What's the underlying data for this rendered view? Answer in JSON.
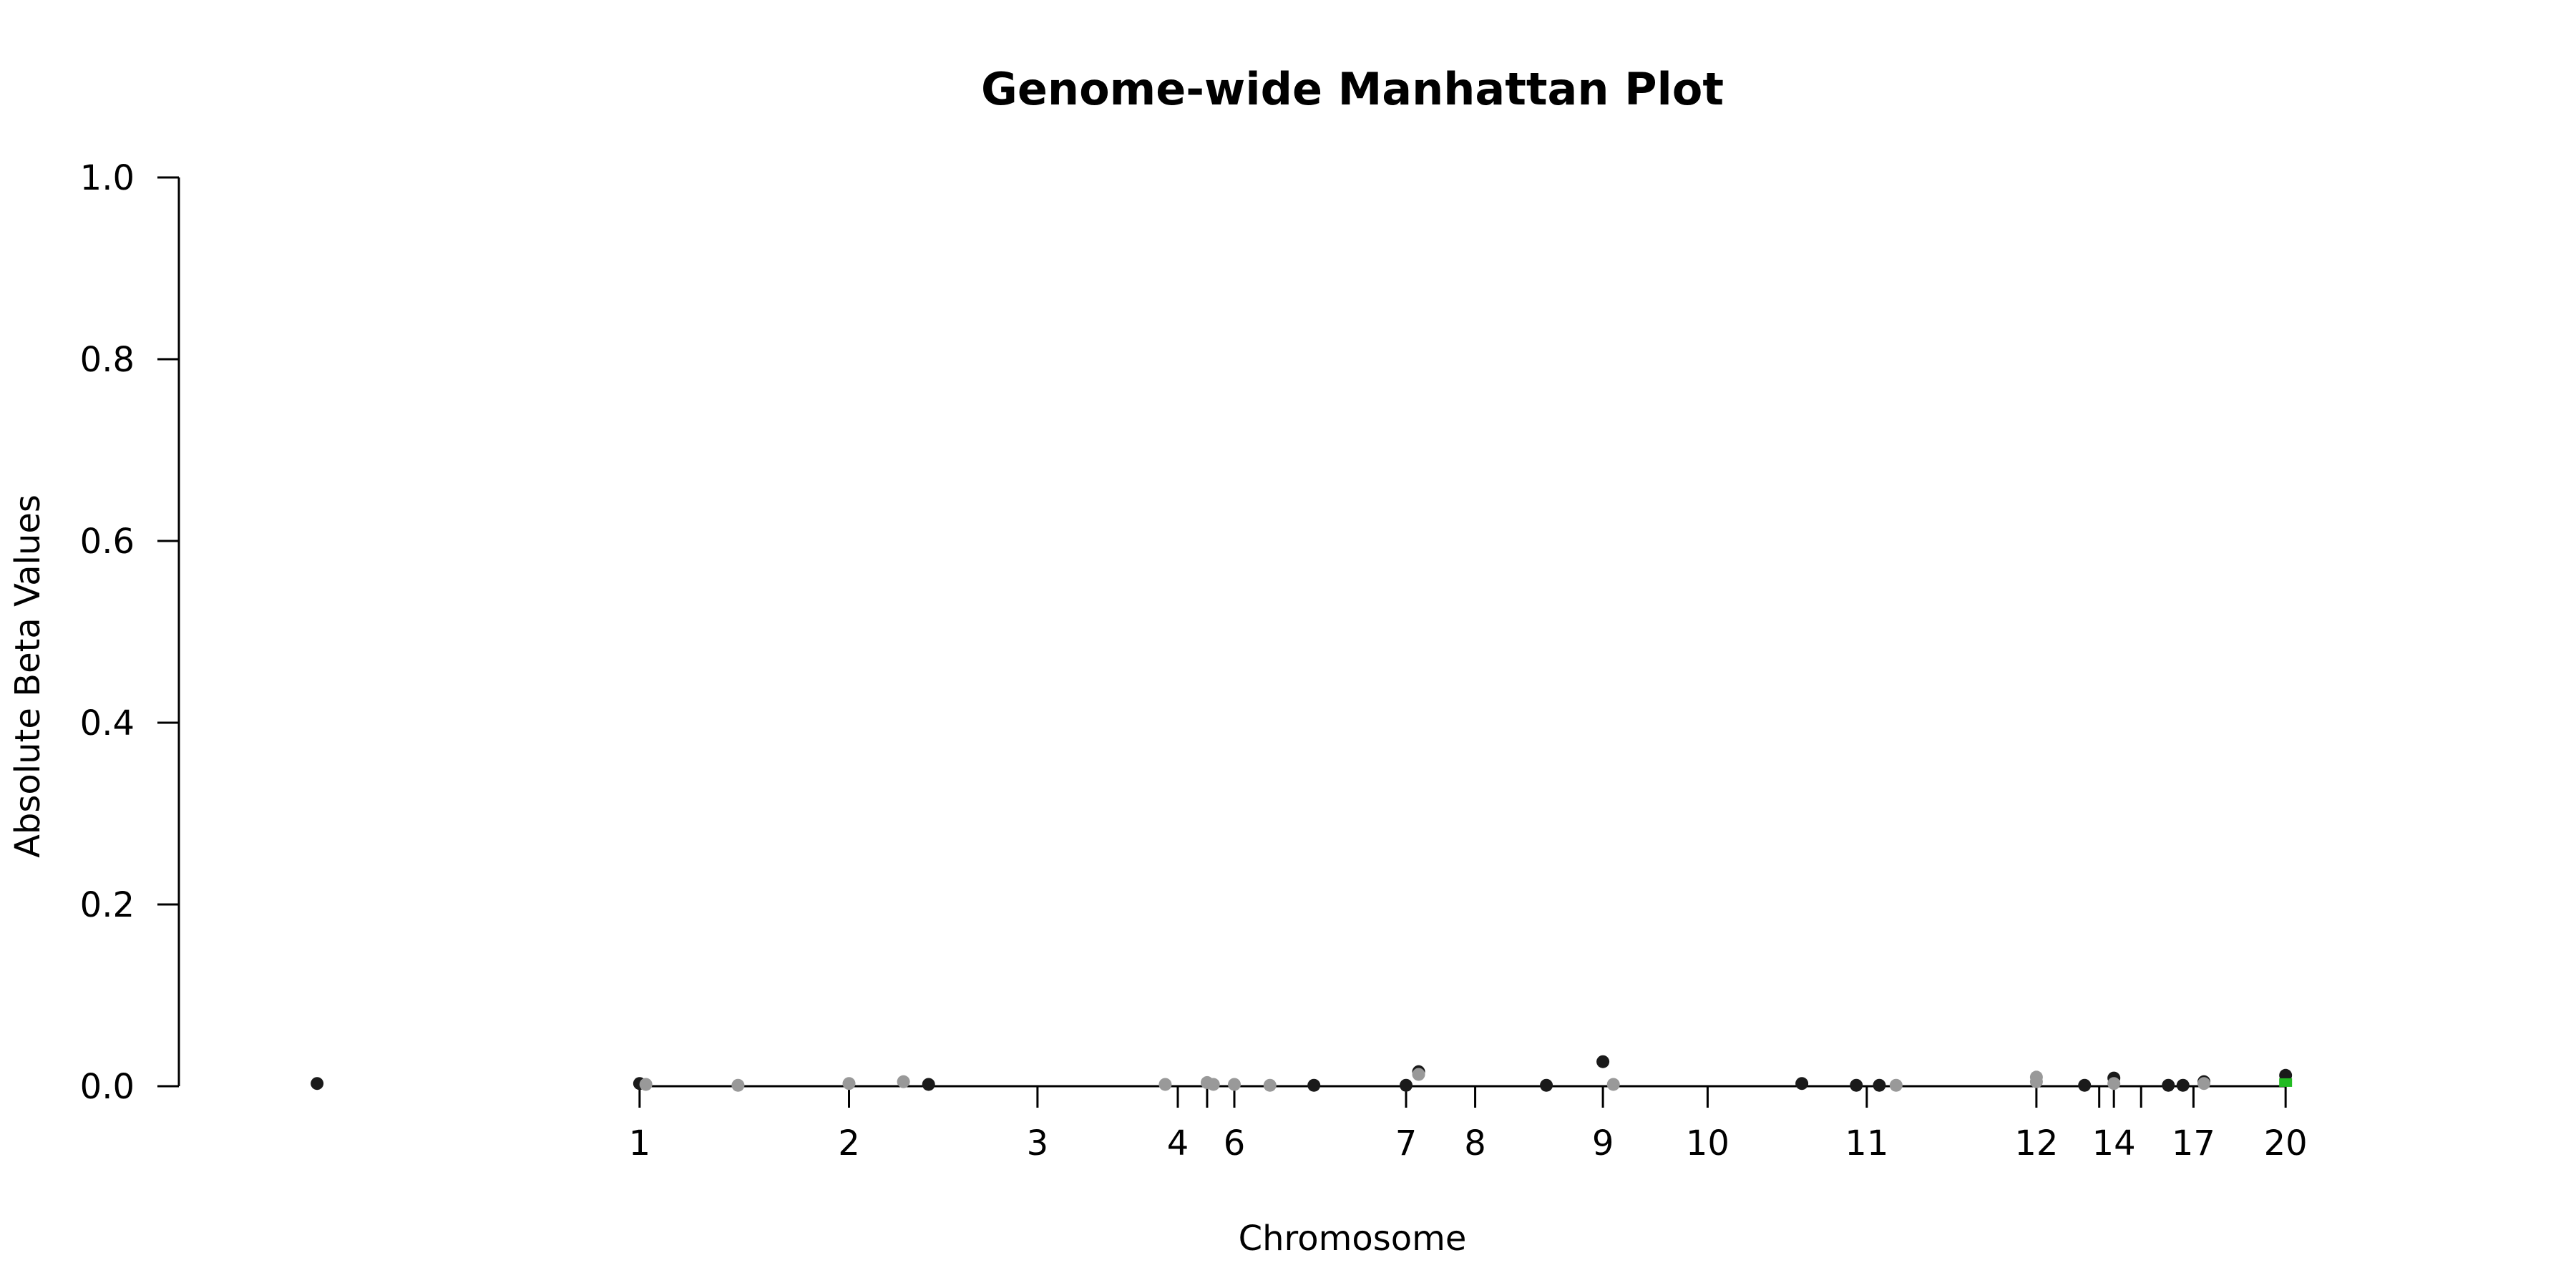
{
  "chart_data": {
    "type": "scatter",
    "title": "Genome-wide Manhattan Plot",
    "xlabel": "Chromosome",
    "ylabel": "Absolute Beta Values",
    "ylim": [
      0,
      1
    ],
    "yticks": [
      "0.0",
      "0.2",
      "0.4",
      "0.6",
      "0.8",
      "1.0"
    ],
    "x_ticks": [
      {
        "label": "1",
        "pos": 1.0
      },
      {
        "label": "2",
        "pos": 2.0
      },
      {
        "label": "3",
        "pos": 2.9
      },
      {
        "label": "4",
        "pos": 3.57
      },
      {
        "label": "",
        "pos": 3.71
      },
      {
        "label": "6",
        "pos": 3.84
      },
      {
        "label": "7",
        "pos": 4.66
      },
      {
        "label": "8",
        "pos": 4.99
      },
      {
        "label": "9",
        "pos": 5.6
      },
      {
        "label": "10",
        "pos": 6.1
      },
      {
        "label": "11",
        "pos": 6.86
      },
      {
        "label": "12",
        "pos": 7.67
      },
      {
        "label": "",
        "pos": 7.97
      },
      {
        "label": "14",
        "pos": 8.04
      },
      {
        "label": "",
        "pos": 8.17
      },
      {
        "label": "17",
        "pos": 8.42
      },
      {
        "label": "20",
        "pos": 8.86
      }
    ],
    "xlim": [
      -1.2,
      9.7
    ],
    "colors": {
      "dark": "#1a1a1a",
      "light": "#999999",
      "highlight": "#22bb22"
    },
    "series": [
      {
        "color": "dark",
        "points": [
          [
            -0.54,
            0.003
          ],
          [
            1.0,
            0.003
          ],
          [
            2.38,
            0.002
          ],
          [
            4.22,
            0.001
          ],
          [
            4.66,
            0.001
          ],
          [
            4.72,
            0.016
          ],
          [
            5.33,
            0.001
          ],
          [
            5.6,
            0.027
          ],
          [
            6.55,
            0.003
          ],
          [
            6.81,
            0.001
          ],
          [
            6.92,
            0.001
          ],
          [
            7.9,
            0.001
          ],
          [
            8.04,
            0.009
          ],
          [
            8.3,
            0.001
          ],
          [
            8.37,
            0.001
          ],
          [
            8.47,
            0.005
          ],
          [
            8.86,
            0.012
          ]
        ]
      },
      {
        "color": "light",
        "points": [
          [
            1.03,
            0.002
          ],
          [
            1.47,
            0.001
          ],
          [
            2.0,
            0.003
          ],
          [
            2.26,
            0.005
          ],
          [
            3.51,
            0.002
          ],
          [
            3.71,
            0.004
          ],
          [
            3.74,
            0.002
          ],
          [
            3.84,
            0.002
          ],
          [
            4.01,
            0.001
          ],
          [
            4.72,
            0.013
          ],
          [
            5.65,
            0.002
          ],
          [
            7.0,
            0.001
          ],
          [
            7.67,
            0.01
          ],
          [
            7.67,
            0.005
          ],
          [
            8.04,
            0.003
          ],
          [
            8.47,
            0.003
          ]
        ]
      },
      {
        "color": "highlight",
        "points": [
          [
            8.86,
            0.004
          ]
        ]
      }
    ]
  }
}
